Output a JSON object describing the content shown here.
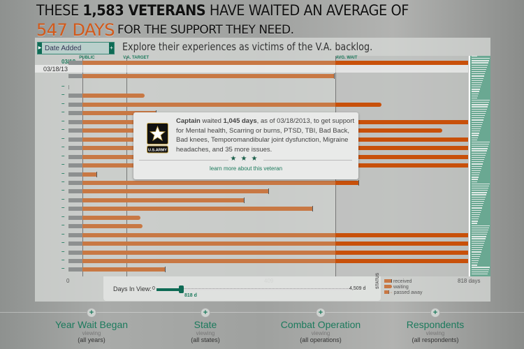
{
  "header": {
    "line1_pre": "THESE ",
    "line1_bold": "1,583 VETERANS",
    "line1_post": " HAVE WAITED AN AVERAGE OF",
    "days": "547 DAYS",
    "line2": "FOR THE SUPPORT THEY NEED."
  },
  "sort_dropdown": {
    "value": "Date Added"
  },
  "subtitle": "Explore their experiences as victims of the V.A. backlog.",
  "markers": [
    {
      "label": "PUBLIC",
      "days": 29
    },
    {
      "label": "V.A. TARGET",
      "days": 119
    },
    {
      "label": "AVG. WAIT",
      "days": 547
    }
  ],
  "colors": {
    "accent": "#1b7a5c",
    "received": "#c87844",
    "waiting_dark": "#c8500a",
    "headline_orange": "#d2591a"
  },
  "chart_data": {
    "type": "bar",
    "orientation": "horizontal",
    "xlim": [
      0,
      818
    ],
    "x_ticks": [
      "0",
      "409",
      "818 days"
    ],
    "date_header": "03/18/13",
    "rows": [
      {
        "label": "03/18",
        "days": 818,
        "status": "waiting"
      },
      {
        "label": "",
        "days": 543,
        "status": "received"
      },
      {
        "label": "–",
        "days": 2,
        "status": "waiting"
      },
      {
        "label": "–",
        "days": 156,
        "status": "waiting"
      },
      {
        "label": "–",
        "days": 641,
        "status": "waiting"
      },
      {
        "label": "–",
        "days": 179,
        "status": "received"
      },
      {
        "label": "–",
        "days": 818,
        "status": "waiting"
      },
      {
        "label": "–",
        "days": 765,
        "status": "waiting"
      },
      {
        "label": "–",
        "days": 818,
        "status": "waiting"
      },
      {
        "label": "–",
        "days": 818,
        "status": "waiting"
      },
      {
        "label": "–",
        "days": 818,
        "status": "waiting"
      },
      {
        "label": "–",
        "days": 818,
        "status": "waiting"
      },
      {
        "label": "–",
        "days": 57,
        "status": "received"
      },
      {
        "label": "–",
        "days": 594,
        "status": "received"
      },
      {
        "label": "–",
        "days": 409,
        "status": "received"
      },
      {
        "label": "–",
        "days": 359,
        "status": "received"
      },
      {
        "label": "–",
        "days": 499,
        "status": "received"
      },
      {
        "label": "–",
        "days": 147,
        "status": "waiting"
      },
      {
        "label": "–",
        "days": 152,
        "status": "waiting"
      },
      {
        "label": "–",
        "days": 818,
        "status": "waiting"
      },
      {
        "label": "–",
        "days": 818,
        "status": "waiting"
      },
      {
        "label": "–",
        "days": 818,
        "status": "waiting"
      },
      {
        "label": "–",
        "days": 818,
        "status": "waiting"
      },
      {
        "label": "–",
        "days": 197,
        "status": "received"
      }
    ]
  },
  "slider": {
    "label": "Days In View:",
    "min": "0",
    "max": "4,509 d",
    "value_label": "818 d",
    "value": 818,
    "max_value": 4509
  },
  "legend": {
    "title": "STATUS",
    "items": [
      "received",
      "waiting",
      "passed away"
    ]
  },
  "tooltip": {
    "rank": "Captain",
    "w1": " waited ",
    "days": "1,045 days",
    "rest": ", as of 03/18/2013, to get support for Mental health, Scarring or burns, PTSD, TBI, Bad Back, Bad knees, Temporomandibular joint dysfunction, Migraine headaches, and 35 more issues.",
    "logo_text": "U.S.ARMY",
    "stars": "★★★",
    "link": "learn more about this veteran"
  },
  "filters": [
    {
      "title": "Year Wait Began",
      "viewing": "viewing",
      "value": "(all years)"
    },
    {
      "title": "State",
      "viewing": "viewing",
      "value": "(all states)"
    },
    {
      "title": "Combat Operation",
      "viewing": "viewing",
      "value": "(all operations)"
    },
    {
      "title": "Respondents",
      "viewing": "viewing",
      "value": "(all respondents)"
    }
  ]
}
